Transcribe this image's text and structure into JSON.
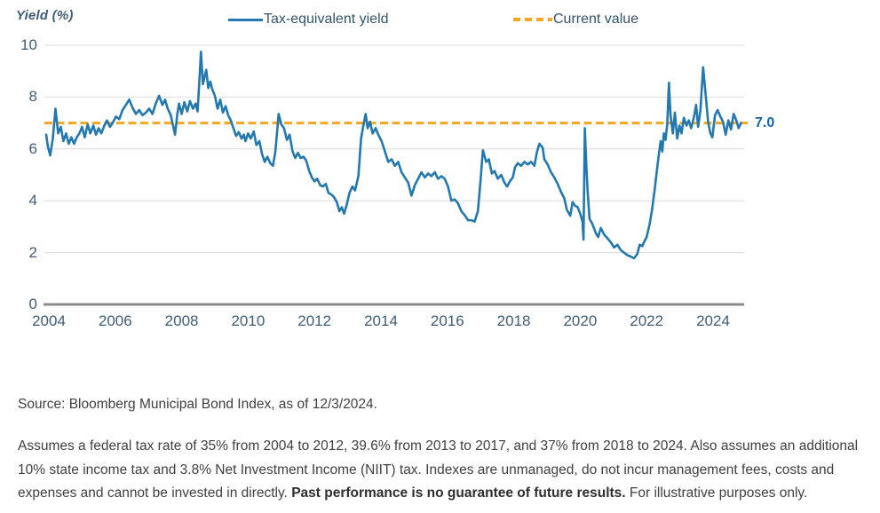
{
  "chart": {
    "y_axis_title": "Yield (%)",
    "legend": [
      {
        "label": "Tax-equivalent yield",
        "color": "#2378b0",
        "style": "solid"
      },
      {
        "label": "Current value",
        "color": "#f5a623",
        "style": "dashed"
      }
    ],
    "current_value_label": "7.0"
  },
  "chart_data": {
    "type": "line",
    "title": "",
    "xlabel": "",
    "ylabel": "Yield (%)",
    "xlim": [
      2004,
      2025
    ],
    "ylim": [
      0,
      10
    ],
    "x_ticks": [
      2004,
      2006,
      2008,
      2010,
      2012,
      2014,
      2016,
      2018,
      2020,
      2022,
      2024
    ],
    "y_ticks": [
      0,
      2,
      4,
      6,
      8,
      10
    ],
    "grid": "horizontal",
    "legend_position": "top",
    "line_color": "#2378b0",
    "grid_color": "#dcdcdc",
    "axis_color": "#8c8c8c",
    "current_value": 7.0,
    "current_value_color": "#f5a623",
    "annotation": {
      "text": "7.0",
      "value": 7.0
    },
    "series": [
      {
        "name": "Tax-equivalent yield",
        "points": [
          [
            2004.0,
            6.55
          ],
          [
            2004.05,
            6.1
          ],
          [
            2004.12,
            5.75
          ],
          [
            2004.2,
            6.4
          ],
          [
            2004.28,
            7.55
          ],
          [
            2004.36,
            6.6
          ],
          [
            2004.44,
            6.85
          ],
          [
            2004.52,
            6.3
          ],
          [
            2004.6,
            6.6
          ],
          [
            2004.68,
            6.2
          ],
          [
            2004.76,
            6.45
          ],
          [
            2004.84,
            6.2
          ],
          [
            2004.92,
            6.45
          ],
          [
            2005.0,
            6.6
          ],
          [
            2005.08,
            6.85
          ],
          [
            2005.16,
            6.45
          ],
          [
            2005.25,
            6.95
          ],
          [
            2005.33,
            6.6
          ],
          [
            2005.42,
            6.9
          ],
          [
            2005.5,
            6.55
          ],
          [
            2005.58,
            6.8
          ],
          [
            2005.66,
            6.6
          ],
          [
            2005.75,
            6.9
          ],
          [
            2005.83,
            7.1
          ],
          [
            2005.92,
            6.85
          ],
          [
            2006.0,
            7.0
          ],
          [
            2006.1,
            7.25
          ],
          [
            2006.2,
            7.15
          ],
          [
            2006.3,
            7.5
          ],
          [
            2006.4,
            7.7
          ],
          [
            2006.5,
            7.9
          ],
          [
            2006.6,
            7.6
          ],
          [
            2006.7,
            7.35
          ],
          [
            2006.8,
            7.5
          ],
          [
            2006.9,
            7.3
          ],
          [
            2007.0,
            7.4
          ],
          [
            2007.1,
            7.55
          ],
          [
            2007.2,
            7.35
          ],
          [
            2007.3,
            7.75
          ],
          [
            2007.4,
            8.05
          ],
          [
            2007.5,
            7.7
          ],
          [
            2007.58,
            7.9
          ],
          [
            2007.66,
            7.55
          ],
          [
            2007.75,
            7.3
          ],
          [
            2007.82,
            6.9
          ],
          [
            2007.88,
            6.55
          ],
          [
            2007.95,
            7.35
          ],
          [
            2008.0,
            7.75
          ],
          [
            2008.08,
            7.35
          ],
          [
            2008.16,
            7.8
          ],
          [
            2008.25,
            7.45
          ],
          [
            2008.33,
            7.85
          ],
          [
            2008.42,
            7.55
          ],
          [
            2008.5,
            7.75
          ],
          [
            2008.56,
            7.45
          ],
          [
            2008.6,
            8.3
          ],
          [
            2008.66,
            9.75
          ],
          [
            2008.72,
            8.5
          ],
          [
            2008.78,
            8.85
          ],
          [
            2008.82,
            9.05
          ],
          [
            2008.88,
            8.35
          ],
          [
            2008.94,
            8.6
          ],
          [
            2009.0,
            8.3
          ],
          [
            2009.08,
            8.05
          ],
          [
            2009.16,
            7.55
          ],
          [
            2009.24,
            7.9
          ],
          [
            2009.32,
            7.4
          ],
          [
            2009.4,
            7.65
          ],
          [
            2009.48,
            7.3
          ],
          [
            2009.56,
            7.1
          ],
          [
            2009.64,
            6.8
          ],
          [
            2009.72,
            6.5
          ],
          [
            2009.8,
            6.65
          ],
          [
            2009.88,
            6.4
          ],
          [
            2009.95,
            6.55
          ],
          [
            2010.0,
            6.3
          ],
          [
            2010.08,
            6.6
          ],
          [
            2010.16,
            6.4
          ],
          [
            2010.25,
            6.67
          ],
          [
            2010.33,
            6.15
          ],
          [
            2010.42,
            6.3
          ],
          [
            2010.5,
            5.8
          ],
          [
            2010.58,
            5.5
          ],
          [
            2010.66,
            5.7
          ],
          [
            2010.75,
            5.45
          ],
          [
            2010.83,
            5.35
          ],
          [
            2010.9,
            5.9
          ],
          [
            2011.0,
            7.35
          ],
          [
            2011.08,
            6.95
          ],
          [
            2011.16,
            6.8
          ],
          [
            2011.25,
            6.35
          ],
          [
            2011.33,
            6.55
          ],
          [
            2011.42,
            5.9
          ],
          [
            2011.5,
            5.65
          ],
          [
            2011.58,
            5.85
          ],
          [
            2011.66,
            5.65
          ],
          [
            2011.75,
            5.7
          ],
          [
            2011.83,
            5.55
          ],
          [
            2011.92,
            5.15
          ],
          [
            2012.0,
            4.9
          ],
          [
            2012.08,
            4.75
          ],
          [
            2012.16,
            4.85
          ],
          [
            2012.25,
            4.6
          ],
          [
            2012.33,
            4.55
          ],
          [
            2012.42,
            4.65
          ],
          [
            2012.5,
            4.3
          ],
          [
            2012.58,
            4.25
          ],
          [
            2012.66,
            4.15
          ],
          [
            2012.75,
            3.95
          ],
          [
            2012.83,
            3.6
          ],
          [
            2012.9,
            3.75
          ],
          [
            2012.97,
            3.5
          ],
          [
            2013.05,
            3.85
          ],
          [
            2013.13,
            4.3
          ],
          [
            2013.22,
            4.55
          ],
          [
            2013.3,
            4.4
          ],
          [
            2013.4,
            4.95
          ],
          [
            2013.48,
            6.4
          ],
          [
            2013.55,
            6.9
          ],
          [
            2013.62,
            7.35
          ],
          [
            2013.68,
            6.8
          ],
          [
            2013.75,
            7.05
          ],
          [
            2013.83,
            6.6
          ],
          [
            2013.92,
            6.8
          ],
          [
            2014.0,
            6.55
          ],
          [
            2014.1,
            6.3
          ],
          [
            2014.2,
            5.9
          ],
          [
            2014.3,
            5.5
          ],
          [
            2014.4,
            5.6
          ],
          [
            2014.5,
            5.35
          ],
          [
            2014.6,
            5.5
          ],
          [
            2014.7,
            5.1
          ],
          [
            2014.8,
            4.9
          ],
          [
            2014.9,
            4.7
          ],
          [
            2015.0,
            4.2
          ],
          [
            2015.1,
            4.6
          ],
          [
            2015.2,
            4.85
          ],
          [
            2015.3,
            5.1
          ],
          [
            2015.4,
            4.9
          ],
          [
            2015.5,
            5.05
          ],
          [
            2015.6,
            4.95
          ],
          [
            2015.7,
            5.1
          ],
          [
            2015.8,
            4.85
          ],
          [
            2015.9,
            4.95
          ],
          [
            2016.0,
            4.85
          ],
          [
            2016.1,
            4.55
          ],
          [
            2016.2,
            4.0
          ],
          [
            2016.3,
            4.05
          ],
          [
            2016.4,
            3.9
          ],
          [
            2016.5,
            3.6
          ],
          [
            2016.6,
            3.45
          ],
          [
            2016.7,
            3.25
          ],
          [
            2016.8,
            3.25
          ],
          [
            2016.9,
            3.2
          ],
          [
            2017.0,
            3.6
          ],
          [
            2017.08,
            4.8
          ],
          [
            2017.15,
            5.95
          ],
          [
            2017.25,
            5.5
          ],
          [
            2017.33,
            5.6
          ],
          [
            2017.42,
            5.05
          ],
          [
            2017.5,
            5.15
          ],
          [
            2017.6,
            4.85
          ],
          [
            2017.7,
            5.0
          ],
          [
            2017.8,
            4.7
          ],
          [
            2017.88,
            4.55
          ],
          [
            2017.96,
            4.75
          ],
          [
            2018.05,
            4.9
          ],
          [
            2018.12,
            5.3
          ],
          [
            2018.2,
            5.45
          ],
          [
            2018.3,
            5.35
          ],
          [
            2018.4,
            5.5
          ],
          [
            2018.5,
            5.4
          ],
          [
            2018.6,
            5.5
          ],
          [
            2018.7,
            5.35
          ],
          [
            2018.78,
            5.9
          ],
          [
            2018.85,
            6.2
          ],
          [
            2018.95,
            6.05
          ],
          [
            2019.0,
            5.6
          ],
          [
            2019.1,
            5.4
          ],
          [
            2019.2,
            5.1
          ],
          [
            2019.3,
            4.9
          ],
          [
            2019.4,
            4.65
          ],
          [
            2019.5,
            4.35
          ],
          [
            2019.6,
            4.1
          ],
          [
            2019.68,
            3.65
          ],
          [
            2019.78,
            3.42
          ],
          [
            2019.85,
            3.95
          ],
          [
            2019.93,
            3.8
          ],
          [
            2020.0,
            3.76
          ],
          [
            2020.08,
            3.5
          ],
          [
            2020.15,
            3.2
          ],
          [
            2020.18,
            2.5
          ],
          [
            2020.22,
            6.8
          ],
          [
            2020.26,
            5.5
          ],
          [
            2020.3,
            4.45
          ],
          [
            2020.36,
            3.3
          ],
          [
            2020.45,
            3.1
          ],
          [
            2020.55,
            2.75
          ],
          [
            2020.62,
            2.6
          ],
          [
            2020.7,
            2.95
          ],
          [
            2020.8,
            2.7
          ],
          [
            2020.9,
            2.55
          ],
          [
            2021.0,
            2.4
          ],
          [
            2021.1,
            2.2
          ],
          [
            2021.2,
            2.3
          ],
          [
            2021.3,
            2.1
          ],
          [
            2021.4,
            2.0
          ],
          [
            2021.5,
            1.9
          ],
          [
            2021.6,
            1.85
          ],
          [
            2021.7,
            1.78
          ],
          [
            2021.8,
            1.95
          ],
          [
            2021.87,
            2.3
          ],
          [
            2021.95,
            2.25
          ],
          [
            2022.0,
            2.4
          ],
          [
            2022.08,
            2.6
          ],
          [
            2022.17,
            3.1
          ],
          [
            2022.25,
            3.7
          ],
          [
            2022.33,
            4.5
          ],
          [
            2022.42,
            5.5
          ],
          [
            2022.5,
            6.3
          ],
          [
            2022.55,
            5.9
          ],
          [
            2022.6,
            6.6
          ],
          [
            2022.65,
            6.35
          ],
          [
            2022.7,
            6.95
          ],
          [
            2022.75,
            8.55
          ],
          [
            2022.8,
            7.3
          ],
          [
            2022.87,
            6.6
          ],
          [
            2022.93,
            7.4
          ],
          [
            2023.0,
            6.4
          ],
          [
            2023.07,
            6.9
          ],
          [
            2023.13,
            6.6
          ],
          [
            2023.2,
            7.2
          ],
          [
            2023.28,
            6.9
          ],
          [
            2023.35,
            7.1
          ],
          [
            2023.42,
            6.8
          ],
          [
            2023.5,
            7.2
          ],
          [
            2023.57,
            7.7
          ],
          [
            2023.63,
            6.85
          ],
          [
            2023.7,
            7.5
          ],
          [
            2023.78,
            9.15
          ],
          [
            2023.85,
            8.2
          ],
          [
            2023.93,
            7.05
          ],
          [
            2024.0,
            6.6
          ],
          [
            2024.06,
            6.45
          ],
          [
            2024.14,
            7.3
          ],
          [
            2024.22,
            7.5
          ],
          [
            2024.3,
            7.25
          ],
          [
            2024.38,
            7.05
          ],
          [
            2024.46,
            6.55
          ],
          [
            2024.54,
            7.1
          ],
          [
            2024.62,
            6.75
          ],
          [
            2024.7,
            7.35
          ],
          [
            2024.78,
            7.1
          ],
          [
            2024.85,
            6.8
          ],
          [
            2024.92,
            7.0
          ]
        ]
      },
      {
        "name": "Current value",
        "style": "dashed",
        "value": 7.0
      }
    ]
  },
  "footer": {
    "source": "Source: Bloomberg Municipal Bond Index, as of 12/3/2024.",
    "disclosure_before": "Assumes a federal tax rate of 35% from 2004 to 2012, 39.6% from 2013 to 2017, and 37% from 2018 to 2024. Also assumes an additional 10% state income tax and 3.8% Net Investment Income (NIIT) tax. Indexes are unmanaged, do not incur management fees, costs and expenses and cannot be invested in directly. ",
    "disclosure_bold": "Past performance is no guarantee of future results.",
    "disclosure_after": " For illustrative purposes only."
  }
}
